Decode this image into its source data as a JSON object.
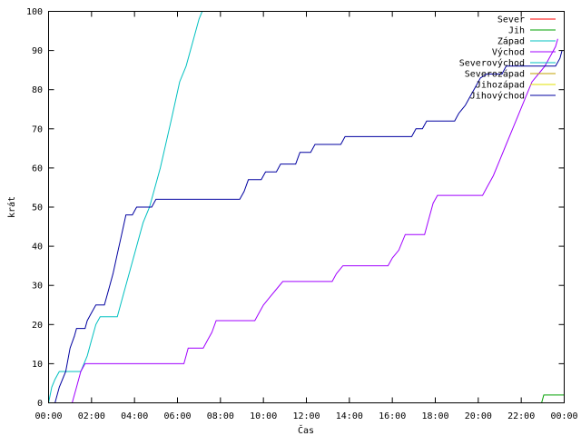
{
  "chart_data": {
    "type": "line",
    "xlabel": "Čas",
    "ylabel": "krát",
    "xlim": [
      0,
      24
    ],
    "ylim": [
      0,
      100
    ],
    "xticks": [
      {
        "v": 0,
        "label": "00:00"
      },
      {
        "v": 2,
        "label": "02:00"
      },
      {
        "v": 4,
        "label": "04:00"
      },
      {
        "v": 6,
        "label": "06:00"
      },
      {
        "v": 8,
        "label": "08:00"
      },
      {
        "v": 10,
        "label": "10:00"
      },
      {
        "v": 12,
        "label": "12:00"
      },
      {
        "v": 14,
        "label": "14:00"
      },
      {
        "v": 16,
        "label": "16:00"
      },
      {
        "v": 18,
        "label": "18:00"
      },
      {
        "v": 20,
        "label": "20:00"
      },
      {
        "v": 22,
        "label": "22:00"
      },
      {
        "v": 24,
        "label": "00:00"
      }
    ],
    "yticks": [
      0,
      10,
      20,
      30,
      40,
      50,
      60,
      70,
      80,
      90,
      100
    ],
    "legend_position": "top-right",
    "grid": false,
    "series": [
      {
        "name": "Sever",
        "color": "#ff0000",
        "points": []
      },
      {
        "name": "Jih",
        "color": "#00a000",
        "points": [
          [
            22.95,
            0
          ],
          [
            23.05,
            2
          ],
          [
            24,
            2
          ]
        ]
      },
      {
        "name": "Západ",
        "color": "#00c0c0",
        "points": [
          [
            0,
            0
          ],
          [
            0.15,
            4
          ],
          [
            0.3,
            6
          ],
          [
            0.5,
            8
          ],
          [
            0.8,
            8
          ],
          [
            1.5,
            8
          ],
          [
            1.8,
            12
          ],
          [
            2.0,
            16
          ],
          [
            2.2,
            20
          ],
          [
            2.4,
            22
          ],
          [
            3.2,
            22
          ],
          [
            3.5,
            28
          ],
          [
            3.8,
            34
          ],
          [
            4.1,
            40
          ],
          [
            4.4,
            46
          ],
          [
            4.7,
            50
          ],
          [
            5.2,
            60
          ],
          [
            5.7,
            72
          ],
          [
            6.1,
            82
          ],
          [
            6.4,
            86
          ],
          [
            6.7,
            92
          ],
          [
            7.0,
            98
          ],
          [
            7.15,
            100
          ]
        ]
      },
      {
        "name": "Východ",
        "color": "#a000ff",
        "points": [
          [
            1.1,
            0
          ],
          [
            1.3,
            4
          ],
          [
            1.5,
            8
          ],
          [
            1.7,
            10
          ],
          [
            6.3,
            10
          ],
          [
            6.5,
            14
          ],
          [
            7.2,
            14
          ],
          [
            7.4,
            16
          ],
          [
            7.6,
            18
          ],
          [
            7.8,
            21
          ],
          [
            9.6,
            21
          ],
          [
            9.8,
            23
          ],
          [
            10.0,
            25
          ],
          [
            10.3,
            27
          ],
          [
            10.6,
            29
          ],
          [
            10.9,
            31
          ],
          [
            13.2,
            31
          ],
          [
            13.4,
            33
          ],
          [
            13.7,
            35
          ],
          [
            15.8,
            35
          ],
          [
            16.0,
            37
          ],
          [
            16.3,
            39
          ],
          [
            16.6,
            43
          ],
          [
            17.5,
            43
          ],
          [
            17.7,
            47
          ],
          [
            17.9,
            51
          ],
          [
            18.1,
            53
          ],
          [
            20.2,
            53
          ],
          [
            20.4,
            55
          ],
          [
            20.7,
            58
          ],
          [
            21.0,
            62
          ],
          [
            21.3,
            66
          ],
          [
            21.6,
            70
          ],
          [
            21.9,
            74
          ],
          [
            22.2,
            78
          ],
          [
            22.5,
            82
          ],
          [
            22.8,
            84
          ],
          [
            23.1,
            86
          ],
          [
            23.4,
            89
          ],
          [
            23.6,
            91
          ],
          [
            23.7,
            93
          ]
        ]
      },
      {
        "name": "Severovýchod",
        "color": "#00c0c0",
        "points": []
      },
      {
        "name": "Severozápad",
        "color": "#c0a000",
        "points": []
      },
      {
        "name": "Jihozápad",
        "color": "#e0e000",
        "points": []
      },
      {
        "name": "Jihovýchod",
        "color": "#0000a0",
        "points": [
          [
            0.3,
            0
          ],
          [
            0.5,
            4
          ],
          [
            0.8,
            8
          ],
          [
            1.0,
            14
          ],
          [
            1.2,
            17
          ],
          [
            1.3,
            19
          ],
          [
            1.7,
            19
          ],
          [
            1.8,
            21
          ],
          [
            2.0,
            23
          ],
          [
            2.2,
            25
          ],
          [
            2.6,
            25
          ],
          [
            2.8,
            29
          ],
          [
            3.0,
            33
          ],
          [
            3.2,
            38
          ],
          [
            3.4,
            43
          ],
          [
            3.6,
            48
          ],
          [
            3.9,
            48
          ],
          [
            4.1,
            50
          ],
          [
            4.8,
            50
          ],
          [
            5.0,
            52
          ],
          [
            8.9,
            52
          ],
          [
            9.1,
            54
          ],
          [
            9.3,
            57
          ],
          [
            9.9,
            57
          ],
          [
            10.1,
            59
          ],
          [
            10.6,
            59
          ],
          [
            10.8,
            61
          ],
          [
            11.5,
            61
          ],
          [
            11.7,
            64
          ],
          [
            12.2,
            64
          ],
          [
            12.4,
            66
          ],
          [
            13.6,
            66
          ],
          [
            13.8,
            68
          ],
          [
            16.9,
            68
          ],
          [
            17.1,
            70
          ],
          [
            17.4,
            70
          ],
          [
            17.6,
            72
          ],
          [
            18.9,
            72
          ],
          [
            19.1,
            74
          ],
          [
            19.4,
            76
          ],
          [
            19.7,
            79
          ],
          [
            19.9,
            81
          ],
          [
            20.1,
            83
          ],
          [
            20.4,
            84
          ],
          [
            21.1,
            84
          ],
          [
            21.3,
            86
          ],
          [
            23.6,
            86
          ],
          [
            23.8,
            88
          ],
          [
            23.9,
            90
          ]
        ]
      }
    ]
  }
}
